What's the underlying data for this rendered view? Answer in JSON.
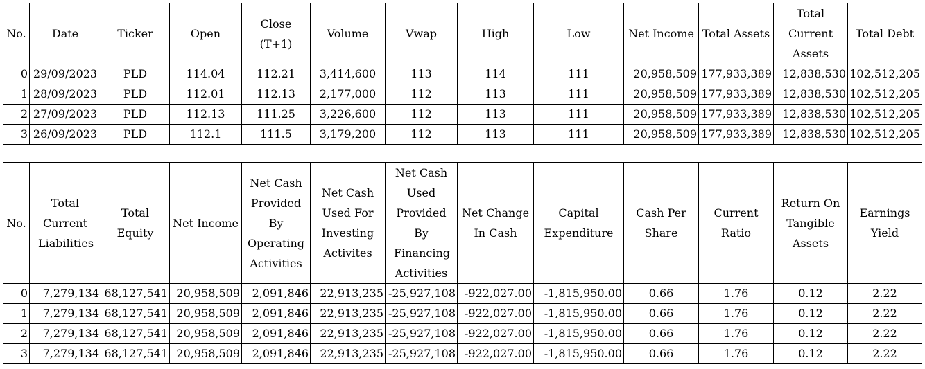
{
  "table1": {
    "headers": [
      "No.",
      "Date",
      "Ticker",
      "Open",
      "Close (T+1)",
      "Volume",
      "Vwap",
      "High",
      "Low",
      "Net Income",
      "Total Assets",
      "Total Current Assets",
      "Total Debt"
    ],
    "rows": [
      [
        "0",
        "29/09/2023",
        "PLD",
        "114.04",
        "112.21",
        "3,414,600",
        "113",
        "114",
        "111",
        "20,958,509",
        "177,933,389",
        "12,838,530",
        "102,512,205"
      ],
      [
        "1",
        "28/09/2023",
        "PLD",
        "112.01",
        "112.13",
        "2,177,000",
        "112",
        "113",
        "111",
        "20,958,509",
        "177,933,389",
        "12,838,530",
        "102,512,205"
      ],
      [
        "2",
        "27/09/2023",
        "PLD",
        "112.13",
        "111.25",
        "3,226,600",
        "112",
        "113",
        "111",
        "20,958,509",
        "177,933,389",
        "12,838,530",
        "102,512,205"
      ],
      [
        "3",
        "26/09/2023",
        "PLD",
        "112.1",
        "111.5",
        "3,179,200",
        "112",
        "113",
        "111",
        "20,958,509",
        "177,933,389",
        "12,838,530",
        "102,512,205"
      ]
    ]
  },
  "table2": {
    "headers": [
      "No.",
      "Total Current Liabilities",
      "Total Equity",
      "Net Income",
      "Net Cash Provided By Operating Activities",
      "Net Cash Used For Investing Activites",
      "Net Cash Used Provided By Financing Activities",
      "Net Change In Cash",
      "Capital Expenditure",
      "Cash Per Share",
      "Current Ratio",
      "Return On Tangible Assets",
      "Earnings Yield"
    ],
    "rows": [
      [
        "0",
        "7,279,134",
        "68,127,541",
        "20,958,509",
        "2,091,846",
        "22,913,235",
        "-25,927,108",
        "-922,027.00",
        "-1,815,950.00",
        "0.66",
        "1.76",
        "0.12",
        "2.22"
      ],
      [
        "1",
        "7,279,134",
        "68,127,541",
        "20,958,509",
        "2,091,846",
        "22,913,235",
        "-25,927,108",
        "-922,027.00",
        "-1,815,950.00",
        "0.66",
        "1.76",
        "0.12",
        "2.22"
      ],
      [
        "2",
        "7,279,134",
        "68,127,541",
        "20,958,509",
        "2,091,846",
        "22,913,235",
        "-25,927,108",
        "-922,027.00",
        "-1,815,950.00",
        "0.66",
        "1.76",
        "0.12",
        "2.22"
      ],
      [
        "3",
        "7,279,134",
        "68,127,541",
        "20,958,509",
        "2,091,846",
        "22,913,235",
        "-25,927,108",
        "-922,027.00",
        "-1,815,950.00",
        "0.66",
        "1.76",
        "0.12",
        "2.22"
      ]
    ]
  }
}
